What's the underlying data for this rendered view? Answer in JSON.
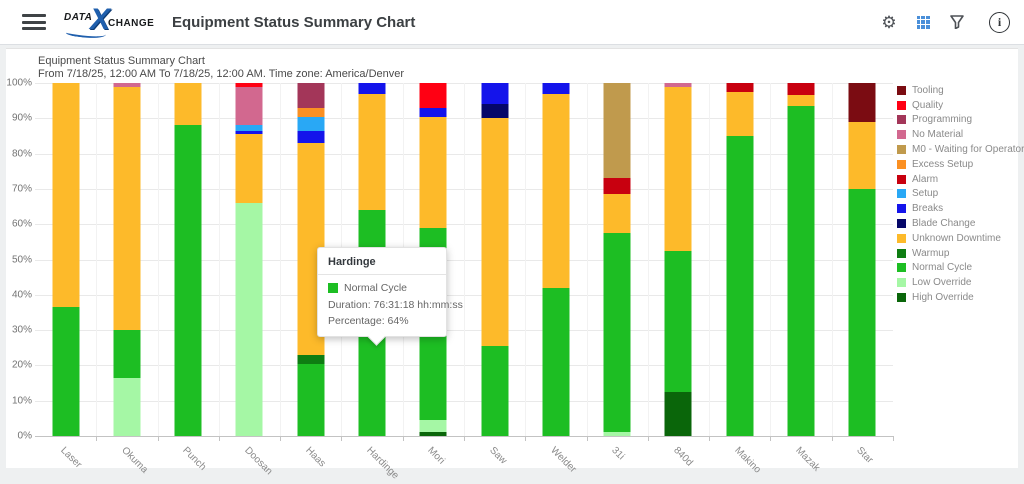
{
  "header": {
    "logo": {
      "data": "DATA",
      "x": "X",
      "change": "CHANGE"
    },
    "title": "Equipment Status Summary Chart",
    "icons": [
      "menu-icon",
      "gear-icon",
      "grid-icon",
      "filter-icon",
      "info-icon"
    ]
  },
  "chart": {
    "title": "Equipment Status Summary Chart",
    "subtitle": "From 7/18/25, 12:00 AM To 7/18/25, 12:00 AM. Time zone: America/Denver"
  },
  "tooltip": {
    "title": "Hardinge",
    "series": "Normal Cycle",
    "duration": "Duration: 76:31:18 hh:mm:ss",
    "percentage": "Percentage: 64%"
  },
  "chart_data": {
    "type": "bar",
    "stacked": true,
    "ylim": [
      0,
      100
    ],
    "ytick_step": 10,
    "ytick_suffix": "%",
    "grid": true,
    "legend_position": "right",
    "categories": [
      "Laser",
      "Okuma",
      "Punch",
      "Doosan",
      "Haas",
      "Hardinge",
      "Mori",
      "Saw",
      "Welder",
      "31i",
      "840d",
      "Makino",
      "Mazak",
      "Star"
    ],
    "legend": [
      {
        "label": "Tooling",
        "color": "#7B0C12"
      },
      {
        "label": "Quality",
        "color": "#FF0013"
      },
      {
        "label": "Programming",
        "color": "#A33659"
      },
      {
        "label": "No Material",
        "color": "#D2688F"
      },
      {
        "label": "M0 - Waiting for Operator",
        "color": "#C09A4D"
      },
      {
        "label": "Excess Setup",
        "color": "#FB9022"
      },
      {
        "label": "Alarm",
        "color": "#C8000F"
      },
      {
        "label": "Setup",
        "color": "#29A8F5"
      },
      {
        "label": "Breaks",
        "color": "#1414EB"
      },
      {
        "label": "Blade Change",
        "color": "#050769"
      },
      {
        "label": "Unknown Downtime",
        "color": "#FDBA2A"
      },
      {
        "label": "Warmup",
        "color": "#0E7D12"
      },
      {
        "label": "Normal Cycle",
        "color": "#1DBE23"
      },
      {
        "label": "Low Override",
        "color": "#A5F7A5"
      },
      {
        "label": "High Override",
        "color": "#0A660A"
      }
    ],
    "bars": [
      {
        "category": "Laser",
        "segments": [
          {
            "status": "Normal Cycle",
            "value": 36.5
          },
          {
            "status": "Unknown Downtime",
            "value": 63.5
          }
        ]
      },
      {
        "category": "Okuma",
        "segments": [
          {
            "status": "Low Override",
            "value": 16.5
          },
          {
            "status": "Normal Cycle",
            "value": 13.5
          },
          {
            "status": "Unknown Downtime",
            "value": 69
          },
          {
            "status": "No Material",
            "value": 1
          }
        ]
      },
      {
        "category": "Punch",
        "segments": [
          {
            "status": "Normal Cycle",
            "value": 88
          },
          {
            "status": "Unknown Downtime",
            "value": 12
          }
        ]
      },
      {
        "category": "Doosan",
        "segments": [
          {
            "status": "Low Override",
            "value": 66
          },
          {
            "status": "Unknown Downtime",
            "value": 19.5
          },
          {
            "status": "Breaks",
            "value": 1
          },
          {
            "status": "Setup",
            "value": 1.5
          },
          {
            "status": "No Material",
            "value": 11
          },
          {
            "status": "Quality",
            "value": 1
          }
        ]
      },
      {
        "category": "Haas",
        "segments": [
          {
            "status": "Normal Cycle",
            "value": 20.5
          },
          {
            "status": "Warmup",
            "value": 2.5
          },
          {
            "status": "Unknown Downtime",
            "value": 60
          },
          {
            "status": "Breaks",
            "value": 3.5
          },
          {
            "status": "Setup",
            "value": 4
          },
          {
            "status": "Excess Setup",
            "value": 2.5
          },
          {
            "status": "Programming",
            "value": 7
          }
        ]
      },
      {
        "category": "Hardinge",
        "segments": [
          {
            "status": "Normal Cycle",
            "value": 64,
            "highlight": true
          },
          {
            "status": "Unknown Downtime",
            "value": 33
          },
          {
            "status": "Breaks",
            "value": 3
          }
        ]
      },
      {
        "category": "Mori",
        "segments": [
          {
            "status": "High Override",
            "value": 1
          },
          {
            "status": "Low Override",
            "value": 3.5
          },
          {
            "status": "Normal Cycle",
            "value": 54.5
          },
          {
            "status": "Unknown Downtime",
            "value": 31.5
          },
          {
            "status": "Breaks",
            "value": 2.5
          },
          {
            "status": "Quality",
            "value": 7
          }
        ]
      },
      {
        "category": "Saw",
        "segments": [
          {
            "status": "Normal Cycle",
            "value": 25.5
          },
          {
            "status": "Unknown Downtime",
            "value": 64.5
          },
          {
            "status": "Blade Change",
            "value": 4
          },
          {
            "status": "Breaks",
            "value": 6
          }
        ]
      },
      {
        "category": "Welder",
        "segments": [
          {
            "status": "Normal Cycle",
            "value": 42
          },
          {
            "status": "Unknown Downtime",
            "value": 55
          },
          {
            "status": "Breaks",
            "value": 3
          }
        ]
      },
      {
        "category": "31i",
        "segments": [
          {
            "status": "Low Override",
            "value": 1
          },
          {
            "status": "Normal Cycle",
            "value": 56.5
          },
          {
            "status": "Unknown Downtime",
            "value": 11
          },
          {
            "status": "Alarm",
            "value": 4.5
          },
          {
            "status": "M0 - Waiting for Operator",
            "value": 27
          }
        ]
      },
      {
        "category": "840d",
        "segments": [
          {
            "status": "High Override",
            "value": 12.5
          },
          {
            "status": "Normal Cycle",
            "value": 40
          },
          {
            "status": "Unknown Downtime",
            "value": 46.5
          },
          {
            "status": "No Material",
            "value": 1
          }
        ]
      },
      {
        "category": "Makino",
        "segments": [
          {
            "status": "Normal Cycle",
            "value": 85
          },
          {
            "status": "Unknown Downtime",
            "value": 12.5
          },
          {
            "status": "Alarm",
            "value": 2.5
          }
        ]
      },
      {
        "category": "Mazak",
        "segments": [
          {
            "status": "Normal Cycle",
            "value": 93.5
          },
          {
            "status": "Unknown Downtime",
            "value": 3
          },
          {
            "status": "Alarm",
            "value": 3.5
          }
        ]
      },
      {
        "category": "Star",
        "segments": [
          {
            "status": "Normal Cycle",
            "value": 70
          },
          {
            "status": "Unknown Downtime",
            "value": 19
          },
          {
            "status": "Tooling",
            "value": 11
          }
        ]
      }
    ]
  }
}
